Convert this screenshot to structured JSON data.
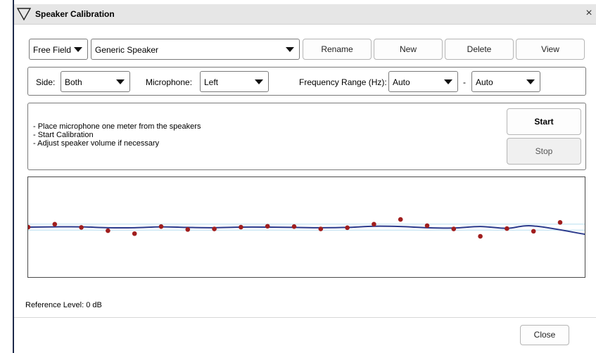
{
  "window": {
    "title": "Speaker Calibration",
    "close_glyph": "×"
  },
  "toolbar": {
    "field_type": "Free Field",
    "speaker": "Generic Speaker",
    "rename_label": "Rename",
    "new_label": "New",
    "delete_label": "Delete",
    "view_label": "View"
  },
  "settings": {
    "side_label": "Side:",
    "side_value": "Both",
    "microphone_label": "Microphone:",
    "microphone_value": "Left",
    "freq_label": "Frequency Range (Hz):",
    "freq_min": "Auto",
    "freq_dash": "-",
    "freq_max": "Auto"
  },
  "instructions": [
    "- Place microphone one meter from the speakers",
    "- Start Calibration",
    "- Adjust speaker volume if necessary"
  ],
  "actions": {
    "start_label": "Start",
    "stop_label": "Stop"
  },
  "chart_data": {
    "type": "scatter",
    "x": [
      0,
      1,
      2,
      3,
      4,
      5,
      6,
      7,
      8,
      9,
      10,
      11,
      12,
      13,
      14,
      15,
      16,
      17,
      18,
      19,
      20
    ],
    "points": [
      0,
      1.0,
      -0.1,
      -1.2,
      -2.2,
      0.2,
      -0.8,
      -0.6,
      0,
      0.3,
      0.2,
      -0.6,
      -0.2,
      1.0,
      2.6,
      0.5,
      -0.6,
      -3.1,
      -0.5,
      -1.4,
      1.6
    ],
    "curve": [
      0,
      0.1,
      0.1,
      -0.2,
      -0.2,
      0.1,
      -0.1,
      -0.2,
      0,
      0,
      -0.1,
      -0.2,
      -0.1,
      0.3,
      0.2,
      -0.2,
      -0.3,
      0.2,
      -0.4,
      0.4,
      -2.4
    ],
    "reference_bands": [
      1,
      -1
    ],
    "ylim": [
      -10,
      10
    ],
    "colors": {
      "points": "#a01e1e",
      "curve": "#2b3a8c",
      "bands": "#b8dff0"
    }
  },
  "footer": {
    "reference_level": "Reference Level: 0 dB",
    "close_label": "Close"
  }
}
